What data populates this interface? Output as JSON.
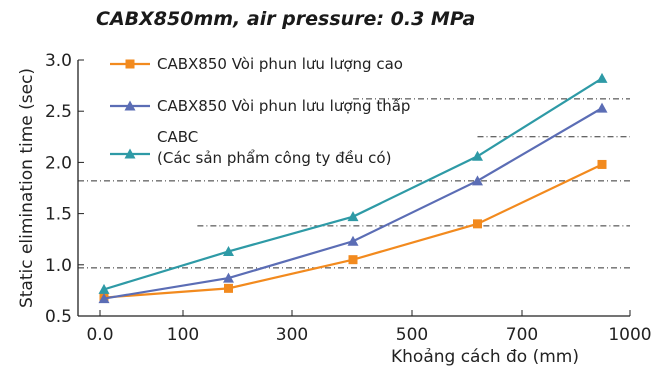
{
  "chart_data": {
    "type": "line",
    "title": "CABX850mm, air pressure: 0.3 MPa",
    "xlabel": "Khoảng cách đo (mm)",
    "ylabel": "Static elimination time (sec)",
    "xlim": [
      -100,
      1000
    ],
    "ylim": [
      0.5,
      3.0
    ],
    "x_ticks": [
      0.0,
      100,
      300,
      500,
      700,
      1000
    ],
    "x_tick_labels": [
      "0.0",
      "100",
      "300",
      "500",
      "700",
      "1000"
    ],
    "y_ticks": [
      0.5,
      1.0,
      1.5,
      2.0,
      2.5,
      3.0
    ],
    "y_tick_labels": [
      "0.5",
      "1.0",
      "1.5",
      "2.0",
      "2.5",
      "3.0"
    ],
    "grid": "dash-dot horizontal lines on the right part of the plot",
    "legend_position": "top-left",
    "series": [
      {
        "name": "CABX850 Vòi phun lưu lượng cao",
        "color": "#f28a1e",
        "marker": "square",
        "x": [
          0,
          200,
          400,
          600,
          800
        ],
        "y": [
          0.68,
          0.77,
          1.05,
          1.4,
          1.98
        ]
      },
      {
        "name": "CABX850 Vòi phun lưu lượng thấp",
        "color": "#5b6db5",
        "marker": "triangle",
        "x": [
          0,
          200,
          400,
          600,
          800
        ],
        "y": [
          0.67,
          0.87,
          1.23,
          1.82,
          2.53
        ]
      },
      {
        "name": "CABC\n(Các sản phẩm công ty đều có)",
        "color": "#2e9aa6",
        "marker": "triangle",
        "x": [
          0,
          200,
          400,
          600,
          800
        ],
        "y": [
          0.76,
          1.13,
          1.47,
          2.06,
          2.82
        ]
      }
    ],
    "reference_lines": [
      {
        "y": 2.62,
        "x_from": 400,
        "x_to": 1000
      },
      {
        "y": 2.25,
        "x_from": 600,
        "x_to": 1000
      },
      {
        "y": 1.82,
        "x_from": -100,
        "x_to": 1000
      },
      {
        "y": 1.38,
        "x_from": 150,
        "x_to": 1000
      },
      {
        "y": 0.97,
        "x_from": -100,
        "x_to": 1000
      }
    ]
  }
}
